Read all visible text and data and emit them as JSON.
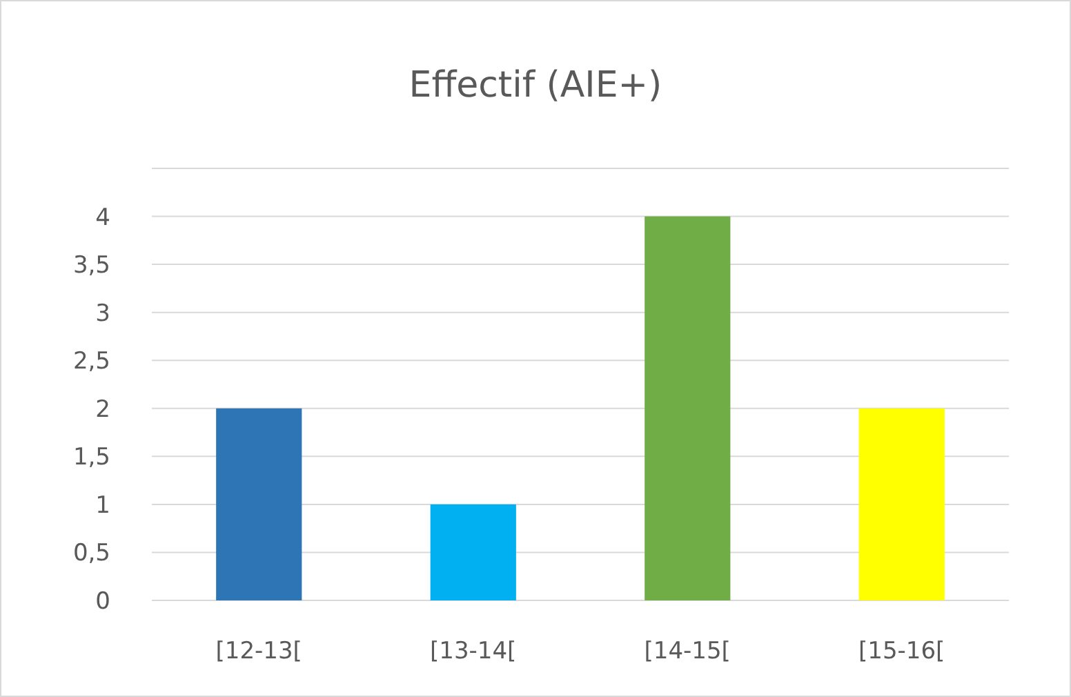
{
  "chart_data": {
    "type": "bar",
    "title": "Effectif (AIE+)",
    "categories": [
      "[12-13[",
      "[13-14[",
      "[14-15[",
      "[15-16["
    ],
    "values": [
      2,
      1,
      4,
      2
    ],
    "colors": [
      "#2e75b6",
      "#00b0f0",
      "#70ad47",
      "#ffff00"
    ],
    "ylim": [
      0,
      4.5
    ],
    "yticks": [
      0,
      {
        "value": 0.5,
        "label": "0,5"
      },
      1,
      {
        "value": 1.5,
        "label": "1,5"
      },
      2,
      {
        "value": 2.5,
        "label": "2,5"
      },
      3,
      {
        "value": 3.5,
        "label": "3,5"
      },
      4,
      {
        "value": 4.5,
        "label": null
      }
    ],
    "grid": "y"
  }
}
